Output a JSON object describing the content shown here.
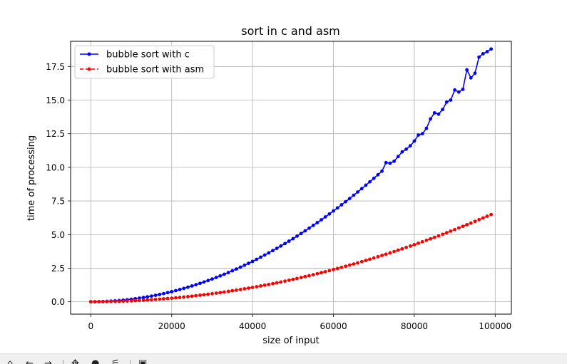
{
  "chart_data": {
    "type": "line",
    "title": "sort in c and asm",
    "xlabel": "size of input",
    "ylabel": "time of processing",
    "xlim": [
      -5000,
      104000
    ],
    "ylim": [
      -0.92,
      19.37
    ],
    "xticks": [
      0,
      20000,
      40000,
      60000,
      80000,
      100000
    ],
    "xtick_labels": [
      "0",
      "20000",
      "40000",
      "60000",
      "80000",
      "100000"
    ],
    "yticks": [
      0.0,
      2.5,
      5.0,
      7.5,
      10.0,
      12.5,
      15.0,
      17.5
    ],
    "ytick_labels": [
      "0.0",
      "2.5",
      "5.0",
      "7.5",
      "10.0",
      "12.5",
      "15.0",
      "17.5"
    ],
    "grid": true,
    "legend_position": "upper-left",
    "x": {
      "start": 0,
      "step": 1000,
      "count": 100
    },
    "series": [
      {
        "name": "bubble sort with c",
        "color": "#0000ff",
        "linestyle": "solid",
        "marker": "dot",
        "values": [
          0.0,
          0.002,
          0.008,
          0.017,
          0.03,
          0.047,
          0.068,
          0.092,
          0.12,
          0.152,
          0.188,
          0.227,
          0.271,
          0.318,
          0.368,
          0.423,
          0.481,
          0.543,
          0.609,
          0.679,
          0.752,
          0.829,
          0.91,
          0.995,
          1.083,
          1.175,
          1.271,
          1.371,
          1.474,
          1.581,
          1.692,
          1.807,
          1.925,
          2.047,
          2.173,
          2.303,
          2.436,
          2.573,
          2.714,
          2.859,
          3.007,
          3.159,
          3.315,
          3.474,
          3.637,
          3.804,
          3.975,
          4.15,
          4.328,
          4.51,
          4.695,
          4.884,
          5.077,
          5.274,
          5.474,
          5.678,
          5.886,
          6.097,
          6.312,
          6.531,
          6.754,
          6.98,
          7.21,
          7.444,
          7.681,
          7.922,
          8.167,
          8.415,
          8.667,
          8.923,
          9.183,
          9.446,
          9.713,
          10.35,
          10.3,
          10.45,
          10.8,
          11.15,
          11.35,
          11.6,
          11.95,
          12.4,
          12.5,
          12.9,
          13.6,
          14.05,
          13.95,
          14.3,
          14.85,
          15.0,
          15.75,
          15.6,
          15.8,
          17.25,
          16.65,
          17.0,
          18.2,
          18.45,
          18.6,
          18.8
        ]
      },
      {
        "name": "bubble sort with asm",
        "color": "#ff0000",
        "linestyle": "dashed",
        "marker": "dot",
        "values": [
          0.0,
          0.001,
          0.003,
          0.006,
          0.011,
          0.017,
          0.024,
          0.033,
          0.043,
          0.055,
          0.067,
          0.081,
          0.096,
          0.113,
          0.131,
          0.15,
          0.171,
          0.193,
          0.216,
          0.241,
          0.267,
          0.294,
          0.323,
          0.353,
          0.384,
          0.417,
          0.451,
          0.486,
          0.523,
          0.561,
          0.6,
          0.641,
          0.683,
          0.726,
          0.771,
          0.817,
          0.864,
          0.913,
          0.963,
          1.014,
          1.067,
          1.121,
          1.176,
          1.232,
          1.29,
          1.349,
          1.41,
          1.472,
          1.535,
          1.6,
          1.666,
          1.733,
          1.801,
          1.871,
          1.942,
          2.014,
          2.088,
          2.163,
          2.239,
          2.317,
          2.396,
          2.476,
          2.558,
          2.641,
          2.725,
          2.81,
          2.897,
          2.985,
          3.075,
          3.165,
          3.257,
          3.351,
          3.445,
          3.541,
          3.639,
          3.737,
          3.837,
          3.938,
          4.041,
          4.145,
          4.25,
          4.356,
          4.464,
          4.572,
          4.683,
          4.794,
          4.907,
          5.021,
          5.136,
          5.253,
          5.371,
          5.49,
          5.61,
          5.732,
          5.855,
          5.98,
          6.105,
          6.232,
          6.36,
          6.49
        ]
      }
    ]
  },
  "toolbar": {
    "icons": [
      "home-icon",
      "back-icon",
      "forward-icon",
      "pan-icon",
      "zoom-icon",
      "configure-icon",
      "save-icon"
    ]
  }
}
